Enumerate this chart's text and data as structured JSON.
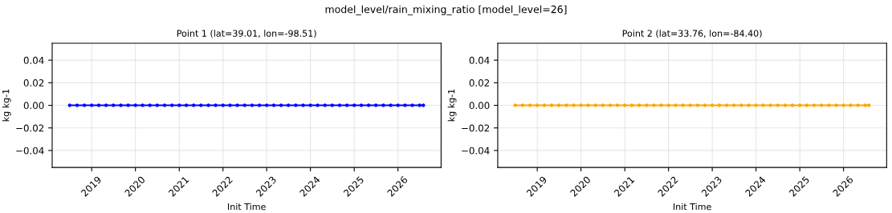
{
  "chart_data": [
    {
      "type": "line",
      "title": "Point 1 (lat=39.01, lon=-98.51)",
      "xlabel": "Init Time",
      "ylabel": "kg kg-1",
      "annotations": [
        "model_level/rain_mixing_ratio [model_level=26]"
      ],
      "x": [
        "2018-07",
        "2018-09",
        "2018-11",
        "2019-01",
        "2019-03",
        "2019-05",
        "2019-07",
        "2019-09",
        "2019-11",
        "2020-01",
        "2020-03",
        "2020-05",
        "2020-07",
        "2020-09",
        "2020-11",
        "2021-01",
        "2021-03",
        "2021-05",
        "2021-07",
        "2021-09",
        "2021-11",
        "2022-01",
        "2022-03",
        "2022-05",
        "2022-07",
        "2022-09",
        "2022-11",
        "2023-01",
        "2023-03",
        "2023-05",
        "2023-07",
        "2023-09",
        "2023-11",
        "2024-01",
        "2024-03",
        "2024-05",
        "2024-07",
        "2024-09",
        "2024-11",
        "2025-01",
        "2025-03",
        "2025-05",
        "2025-07",
        "2025-09",
        "2025-11",
        "2026-01",
        "2026-03",
        "2026-05",
        "2026-07",
        "2026-08"
      ],
      "series": [
        {
          "color": "#0000ff",
          "values": [
            0,
            0,
            0,
            0,
            0,
            0,
            0,
            0,
            0,
            0,
            0,
            0,
            0,
            0,
            0,
            0,
            0,
            0,
            0,
            0,
            0,
            0,
            0,
            0,
            0,
            0,
            0,
            0,
            0,
            0,
            0,
            0,
            0,
            0,
            0,
            0,
            0,
            0,
            0,
            0,
            0,
            0,
            0,
            0,
            0,
            0,
            0,
            0,
            0,
            0
          ]
        }
      ],
      "marker": "circle",
      "line_style": "solid",
      "grid": true,
      "xlim": [
        "2018-02-05",
        "2026-12-27"
      ],
      "xticks": [
        {
          "value": "2019-01-01",
          "label": "2019"
        },
        {
          "value": "2020-01-01",
          "label": "2020"
        },
        {
          "value": "2021-01-01",
          "label": "2021"
        },
        {
          "value": "2022-01-01",
          "label": "2022"
        },
        {
          "value": "2023-01-01",
          "label": "2023"
        },
        {
          "value": "2024-01-01",
          "label": "2024"
        },
        {
          "value": "2025-01-01",
          "label": "2025"
        },
        {
          "value": "2026-01-01",
          "label": "2026"
        }
      ],
      "ylim": [
        -0.055,
        0.055
      ],
      "yticks": [
        {
          "value": -0.04,
          "label": "−0.04"
        },
        {
          "value": -0.02,
          "label": "−0.02"
        },
        {
          "value": 0,
          "label": "0.00"
        },
        {
          "value": 0.02,
          "label": "0.02"
        },
        {
          "value": 0.04,
          "label": "0.04"
        }
      ]
    },
    {
      "type": "line",
      "title": "Point 2 (lat=33.76, lon=-84.40)",
      "xlabel": "Init Time",
      "ylabel": "kg kg-1",
      "x": [
        "2018-07",
        "2018-09",
        "2018-11",
        "2019-01",
        "2019-03",
        "2019-05",
        "2019-07",
        "2019-09",
        "2019-11",
        "2020-01",
        "2020-03",
        "2020-05",
        "2020-07",
        "2020-09",
        "2020-11",
        "2021-01",
        "2021-03",
        "2021-05",
        "2021-07",
        "2021-09",
        "2021-11",
        "2022-01",
        "2022-03",
        "2022-05",
        "2022-07",
        "2022-09",
        "2022-11",
        "2023-01",
        "2023-03",
        "2023-05",
        "2023-07",
        "2023-09",
        "2023-11",
        "2024-01",
        "2024-03",
        "2024-05",
        "2024-07",
        "2024-09",
        "2024-11",
        "2025-01",
        "2025-03",
        "2025-05",
        "2025-07",
        "2025-09",
        "2025-11",
        "2026-01",
        "2026-03",
        "2026-05",
        "2026-07",
        "2026-08"
      ],
      "series": [
        {
          "color": "#ffa500",
          "values": [
            0,
            0,
            0,
            0,
            0,
            0,
            0,
            0,
            0,
            0,
            0,
            0,
            0,
            0,
            0,
            0,
            0,
            0,
            0,
            0,
            0,
            0,
            0,
            0,
            0,
            0,
            0,
            0,
            0,
            0,
            0,
            0,
            0,
            0,
            0,
            0,
            0,
            0,
            0,
            0,
            0,
            0,
            0,
            0,
            0,
            0,
            0,
            0,
            0,
            0
          ]
        }
      ],
      "marker": "circle",
      "line_style": "solid",
      "grid": true,
      "xlim": [
        "2018-02-05",
        "2026-12-27"
      ],
      "xticks": [
        {
          "value": "2019-01-01",
          "label": "2019"
        },
        {
          "value": "2020-01-01",
          "label": "2020"
        },
        {
          "value": "2021-01-01",
          "label": "2021"
        },
        {
          "value": "2022-01-01",
          "label": "2022"
        },
        {
          "value": "2023-01-01",
          "label": "2023"
        },
        {
          "value": "2024-01-01",
          "label": "2024"
        },
        {
          "value": "2025-01-01",
          "label": "2025"
        },
        {
          "value": "2026-01-01",
          "label": "2026"
        }
      ],
      "ylim": [
        -0.055,
        0.055
      ],
      "yticks": [
        {
          "value": -0.04,
          "label": "−0.04"
        },
        {
          "value": -0.02,
          "label": "−0.02"
        },
        {
          "value": 0,
          "label": "0.00"
        },
        {
          "value": 0.02,
          "label": "0.02"
        },
        {
          "value": 0.04,
          "label": "0.04"
        }
      ]
    }
  ]
}
